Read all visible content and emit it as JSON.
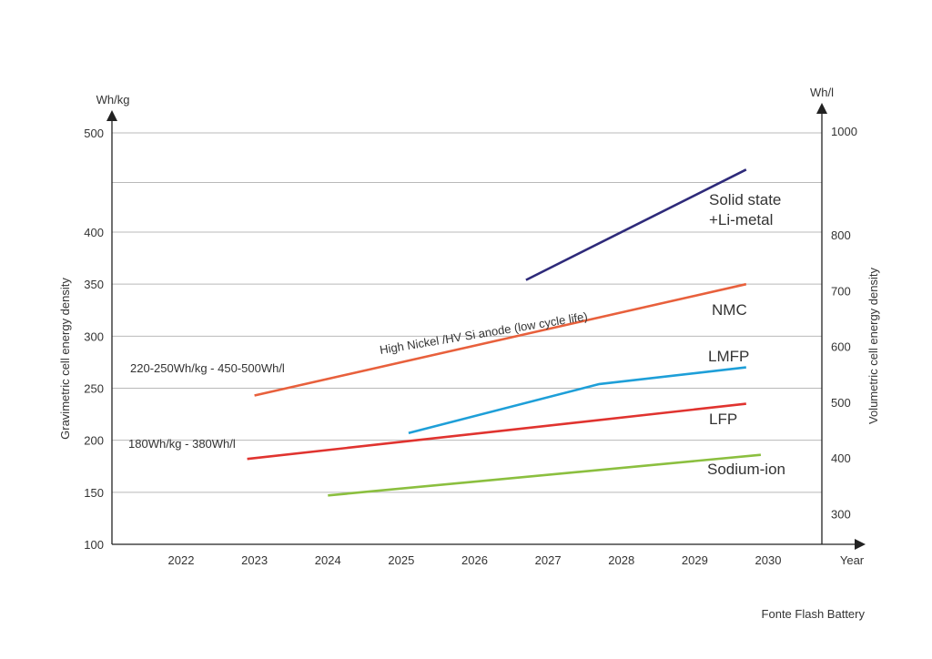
{
  "chart_data": {
    "type": "line",
    "left_axis": {
      "unit": "Wh/kg",
      "label": "Gravimetric cell energy density",
      "ticks": [
        100,
        150,
        200,
        250,
        300,
        350,
        400,
        500
      ],
      "ylim": [
        100,
        500
      ]
    },
    "right_axis": {
      "unit": "Wh/l",
      "label": "Volumetric cell energy density",
      "ticks": [
        300,
        400,
        500,
        600,
        700,
        800,
        1000
      ],
      "ylim": [
        200,
        1000
      ]
    },
    "x_axis": {
      "label": "Year",
      "ticks": [
        "2022",
        "2023",
        "2024",
        "2025",
        "2026",
        "2027",
        "2028",
        "2029",
        "2030"
      ],
      "xlim": [
        2021,
        2030.6
      ]
    },
    "grid": true,
    "series": [
      {
        "name": "Solid state",
        "name_line2": "+Li-metal",
        "color": "#2e2a7a",
        "points": [
          [
            2026.7,
            354
          ],
          [
            2029.7,
            463
          ]
        ]
      },
      {
        "name": "NMC",
        "color": "#e8603c",
        "points": [
          [
            2023.0,
            243
          ],
          [
            2029.7,
            350
          ]
        ]
      },
      {
        "name": "LMFP",
        "color": "#1e9fd8",
        "points": [
          [
            2025.1,
            207
          ],
          [
            2027.7,
            254
          ],
          [
            2029.7,
            270
          ]
        ]
      },
      {
        "name": "LFP",
        "color": "#e0332f",
        "points": [
          [
            2022.9,
            182
          ],
          [
            2029.7,
            235
          ]
        ]
      },
      {
        "name": "Sodium-ion",
        "color": "#8bbf3f",
        "points": [
          [
            2024.0,
            147
          ],
          [
            2029.9,
            186
          ]
        ]
      }
    ],
    "annotations": [
      {
        "id": "nmc_range",
        "text": "220-250Wh/kg - 450-500Wh/l"
      },
      {
        "id": "lfp_range",
        "text": "180Wh/kg - 380Wh/l"
      },
      {
        "id": "high_nickel",
        "text": "High Nickel /HV Si anode (low cycle life)"
      }
    ]
  },
  "source": "Fonte Flash Battery"
}
